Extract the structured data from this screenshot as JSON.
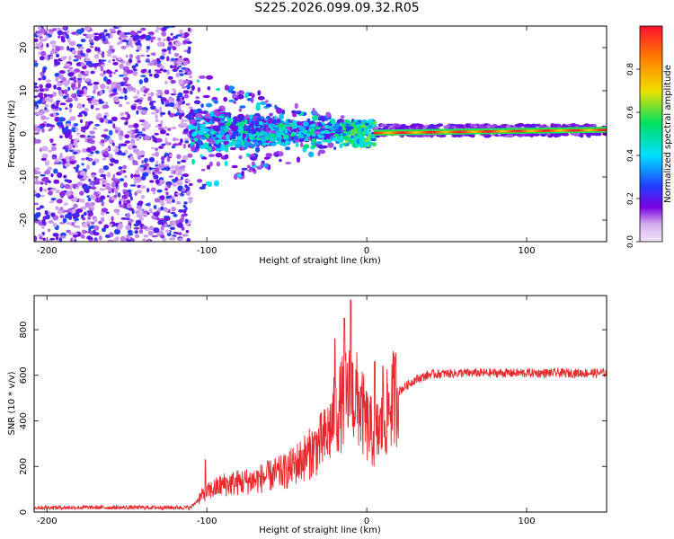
{
  "figure": {
    "title": "S225.2026.099.09.32.R05"
  },
  "chart_data": [
    {
      "type": "heatmap",
      "name": "spectrogram",
      "xlabel": "Height of straight line (km)",
      "ylabel": "Frequency (Hz)",
      "xlim": [
        -208,
        150
      ],
      "ylim": [
        -25,
        25
      ],
      "xticks": [
        -200,
        -100,
        0,
        100
      ],
      "yticks": [
        -20,
        -10,
        0,
        10,
        20
      ],
      "colorbar": {
        "label": "Normalized spectral amplitude",
        "range": [
          0.0,
          1.0
        ],
        "ticks": [
          0.0,
          0.2,
          0.4,
          0.6,
          0.8
        ],
        "colormap": [
          "#f2e6f7",
          "#7a00e0",
          "#2040ff",
          "#00e0ff",
          "#00e060",
          "#f0e000",
          "#ff8000",
          "#ff1030"
        ]
      },
      "regions": [
        {
          "x": [
            -208,
            -110
          ],
          "freq": [
            -25,
            25
          ],
          "amplitude": [
            0.02,
            0.18
          ],
          "desc": "noise"
        },
        {
          "x": [
            -110,
            -15
          ],
          "freq": [
            -14,
            18
          ],
          "amplitude": [
            0.05,
            0.35
          ]
        },
        {
          "x": [
            -15,
            5
          ],
          "freq": [
            -3,
            3
          ],
          "amplitude": [
            0.15,
            0.5
          ]
        },
        {
          "x": [
            5,
            150
          ],
          "freq": [
            0,
            1
          ],
          "amplitude": [
            0.6,
            0.95
          ]
        }
      ],
      "ridge": [
        {
          "x": -105,
          "f": 0.5
        },
        {
          "x": -60,
          "f": 0.2
        },
        {
          "x": -30,
          "f": 0.3
        },
        {
          "x": 0,
          "f": 0.5
        },
        {
          "x": 50,
          "f": 0.2
        },
        {
          "x": 100,
          "f": 0.6
        },
        {
          "x": 150,
          "f": 0.9
        }
      ]
    },
    {
      "type": "line",
      "name": "snr",
      "xlabel": "Height of straight line (km)",
      "ylabel": "SNR (10 * v/v)",
      "xlim": [
        -208,
        150
      ],
      "ylim": [
        0,
        950
      ],
      "xticks": [
        -200,
        -100,
        0,
        100
      ],
      "yticks": [
        0,
        200,
        400,
        600,
        800
      ],
      "color": "#e8282c",
      "series": [
        {
          "x": [
            -208,
            -150,
            -110,
            -102,
            -90,
            -70,
            -50,
            -35,
            -25,
            -20,
            -15,
            -10,
            -5,
            0,
            5,
            10,
            15,
            20,
            30,
            40,
            60,
            100,
            150
          ],
          "y": [
            20,
            20,
            20,
            80,
            120,
            140,
            180,
            260,
            330,
            420,
            480,
            520,
            480,
            380,
            330,
            380,
            480,
            530,
            580,
            605,
            610,
            610,
            610
          ]
        }
      ],
      "spikes": [
        {
          "x": -10,
          "y": 930
        },
        {
          "x": -14,
          "y": 850
        },
        {
          "x": -20,
          "y": 760
        },
        {
          "x": 5,
          "y": 660
        },
        {
          "x": 10,
          "y": 640
        },
        {
          "x": -101,
          "y": 230
        }
      ]
    }
  ]
}
